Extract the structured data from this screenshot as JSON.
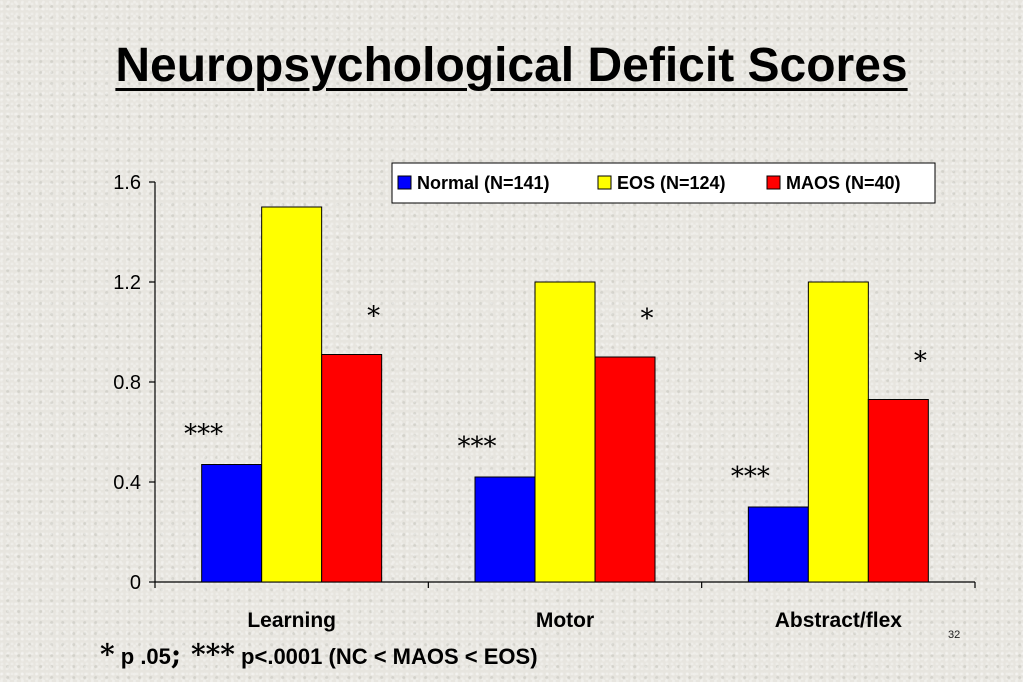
{
  "slide": {
    "title": "Neuropsychological Deficit Scores",
    "page_number": "32"
  },
  "footnote": {
    "star1": "*",
    "text1": " p  .05",
    "sep": ";",
    "star3": " ***",
    "text2": " p<.0001 (NC < MAOS < EOS)"
  },
  "chart_data": {
    "type": "bar",
    "categories": [
      "Learning",
      "Motor",
      "Abstract/flex"
    ],
    "series": [
      {
        "name": "Normal (N=141)",
        "color": "#0000ff",
        "values": [
          0.47,
          0.42,
          0.3
        ]
      },
      {
        "name": "EOS (N=124)",
        "color": "#ffff00",
        "values": [
          1.5,
          1.2,
          1.2
        ]
      },
      {
        "name": "MAOS (N=40)",
        "color": "#ff0000",
        "values": [
          0.91,
          0.9,
          0.73
        ]
      }
    ],
    "ylim": [
      0,
      1.6
    ],
    "yticks": [
      0,
      0.4,
      0.8,
      1.2,
      1.6
    ],
    "ytick_labels": [
      "0",
      "0.4",
      "0.8",
      "1.2",
      "1.6"
    ],
    "legend_position": "top-right",
    "annotations": [
      {
        "category": 0,
        "series": 0,
        "text": "***"
      },
      {
        "category": 0,
        "series": 2,
        "text": "*"
      },
      {
        "category": 1,
        "series": 0,
        "text": "***"
      },
      {
        "category": 1,
        "series": 2,
        "text": "*"
      },
      {
        "category": 2,
        "series": 0,
        "text": "***"
      },
      {
        "category": 2,
        "series": 2,
        "text": "*"
      }
    ]
  }
}
